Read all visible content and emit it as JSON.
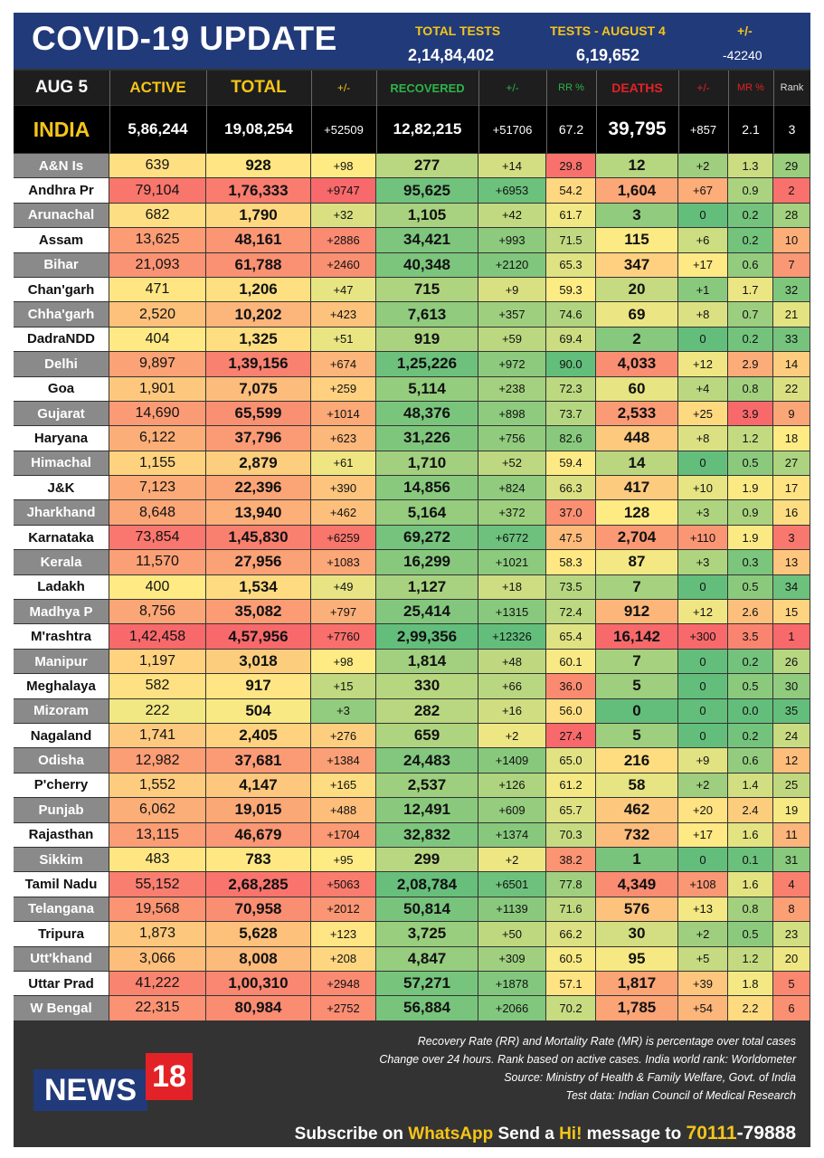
{
  "header": {
    "title": "COVID-19 UPDATE",
    "total_tests_label": "TOTAL TESTS",
    "total_tests_value": "2,14,84,402",
    "tests_day_label": "TESTS - AUGUST 4",
    "tests_day_value": "6,19,652",
    "change_label": "+/-",
    "change_value": "-42240"
  },
  "columns": {
    "date": "AUG 5",
    "active": "ACTIVE",
    "total": "TOTAL",
    "total_change": "+/-",
    "recovered": "RECOVERED",
    "recovered_change": "+/-",
    "rr": "RR %",
    "deaths": "DEATHS",
    "deaths_change": "+/-",
    "mr": "MR %",
    "rank": "Rank"
  },
  "india": {
    "name": "INDIA",
    "active": "5,86,244",
    "total": "19,08,254",
    "total_change": "+52509",
    "recovered": "12,82,215",
    "recovered_change": "+51706",
    "rr": "67.2",
    "deaths": "39,795",
    "deaths_change": "+857",
    "mr": "2.1",
    "rank": "3"
  },
  "states": [
    {
      "name": "A&N Is",
      "active": "639",
      "total": "928",
      "tc": "+98",
      "rec": "277",
      "rc": "+14",
      "rr": "29.8",
      "deaths": "12",
      "dc": "+2",
      "mr": "1.3",
      "rank": "29"
    },
    {
      "name": "Andhra Pr",
      "active": "79,104",
      "total": "1,76,333",
      "tc": "+9747",
      "rec": "95,625",
      "rc": "+6953",
      "rr": "54.2",
      "deaths": "1,604",
      "dc": "+67",
      "mr": "0.9",
      "rank": "2"
    },
    {
      "name": "Arunachal",
      "active": "682",
      "total": "1,790",
      "tc": "+32",
      "rec": "1,105",
      "rc": "+42",
      "rr": "61.7",
      "deaths": "3",
      "dc": "0",
      "mr": "0.2",
      "rank": "28"
    },
    {
      "name": "Assam",
      "active": "13,625",
      "total": "48,161",
      "tc": "+2886",
      "rec": "34,421",
      "rc": "+993",
      "rr": "71.5",
      "deaths": "115",
      "dc": "+6",
      "mr": "0.2",
      "rank": "10"
    },
    {
      "name": "Bihar",
      "active": "21,093",
      "total": "61,788",
      "tc": "+2460",
      "rec": "40,348",
      "rc": "+2120",
      "rr": "65.3",
      "deaths": "347",
      "dc": "+17",
      "mr": "0.6",
      "rank": "7"
    },
    {
      "name": "Chan'garh",
      "active": "471",
      "total": "1,206",
      "tc": "+47",
      "rec": "715",
      "rc": "+9",
      "rr": "59.3",
      "deaths": "20",
      "dc": "+1",
      "mr": "1.7",
      "rank": "32"
    },
    {
      "name": "Chha'garh",
      "active": "2,520",
      "total": "10,202",
      "tc": "+423",
      "rec": "7,613",
      "rc": "+357",
      "rr": "74.6",
      "deaths": "69",
      "dc": "+8",
      "mr": "0.7",
      "rank": "21"
    },
    {
      "name": "DadraNDD",
      "active": "404",
      "total": "1,325",
      "tc": "+51",
      "rec": "919",
      "rc": "+59",
      "rr": "69.4",
      "deaths": "2",
      "dc": "0",
      "mr": "0.2",
      "rank": "33"
    },
    {
      "name": "Delhi",
      "active": "9,897",
      "total": "1,39,156",
      "tc": "+674",
      "rec": "1,25,226",
      "rc": "+972",
      "rr": "90.0",
      "deaths": "4,033",
      "dc": "+12",
      "mr": "2.9",
      "rank": "14"
    },
    {
      "name": "Goa",
      "active": "1,901",
      "total": "7,075",
      "tc": "+259",
      "rec": "5,114",
      "rc": "+238",
      "rr": "72.3",
      "deaths": "60",
      "dc": "+4",
      "mr": "0.8",
      "rank": "22"
    },
    {
      "name": "Gujarat",
      "active": "14,690",
      "total": "65,599",
      "tc": "+1014",
      "rec": "48,376",
      "rc": "+898",
      "rr": "73.7",
      "deaths": "2,533",
      "dc": "+25",
      "mr": "3.9",
      "rank": "9"
    },
    {
      "name": "Haryana",
      "active": "6,122",
      "total": "37,796",
      "tc": "+623",
      "rec": "31,226",
      "rc": "+756",
      "rr": "82.6",
      "deaths": "448",
      "dc": "+8",
      "mr": "1.2",
      "rank": "18"
    },
    {
      "name": "Himachal",
      "active": "1,155",
      "total": "2,879",
      "tc": "+61",
      "rec": "1,710",
      "rc": "+52",
      "rr": "59.4",
      "deaths": "14",
      "dc": "0",
      "mr": "0.5",
      "rank": "27"
    },
    {
      "name": "J&K",
      "active": "7,123",
      "total": "22,396",
      "tc": "+390",
      "rec": "14,856",
      "rc": "+824",
      "rr": "66.3",
      "deaths": "417",
      "dc": "+10",
      "mr": "1.9",
      "rank": "17"
    },
    {
      "name": "Jharkhand",
      "active": "8,648",
      "total": "13,940",
      "tc": "+462",
      "rec": "5,164",
      "rc": "+372",
      "rr": "37.0",
      "deaths": "128",
      "dc": "+3",
      "mr": "0.9",
      "rank": "16"
    },
    {
      "name": "Karnataka",
      "active": "73,854",
      "total": "1,45,830",
      "tc": "+6259",
      "rec": "69,272",
      "rc": "+6772",
      "rr": "47.5",
      "deaths": "2,704",
      "dc": "+110",
      "mr": "1.9",
      "rank": "3"
    },
    {
      "name": "Kerala",
      "active": "11,570",
      "total": "27,956",
      "tc": "+1083",
      "rec": "16,299",
      "rc": "+1021",
      "rr": "58.3",
      "deaths": "87",
      "dc": "+3",
      "mr": "0.3",
      "rank": "13"
    },
    {
      "name": "Ladakh",
      "active": "400",
      "total": "1,534",
      "tc": "+49",
      "rec": "1,127",
      "rc": "+18",
      "rr": "73.5",
      "deaths": "7",
      "dc": "0",
      "mr": "0.5",
      "rank": "34"
    },
    {
      "name": "Madhya P",
      "active": "8,756",
      "total": "35,082",
      "tc": "+797",
      "rec": "25,414",
      "rc": "+1315",
      "rr": "72.4",
      "deaths": "912",
      "dc": "+12",
      "mr": "2.6",
      "rank": "15"
    },
    {
      "name": "M'rashtra",
      "active": "1,42,458",
      "total": "4,57,956",
      "tc": "+7760",
      "rec": "2,99,356",
      "rc": "+12326",
      "rr": "65.4",
      "deaths": "16,142",
      "dc": "+300",
      "mr": "3.5",
      "rank": "1"
    },
    {
      "name": "Manipur",
      "active": "1,197",
      "total": "3,018",
      "tc": "+98",
      "rec": "1,814",
      "rc": "+48",
      "rr": "60.1",
      "deaths": "7",
      "dc": "0",
      "mr": "0.2",
      "rank": "26"
    },
    {
      "name": "Meghalaya",
      "active": "582",
      "total": "917",
      "tc": "+15",
      "rec": "330",
      "rc": "+66",
      "rr": "36.0",
      "deaths": "5",
      "dc": "0",
      "mr": "0.5",
      "rank": "30"
    },
    {
      "name": "Mizoram",
      "active": "222",
      "total": "504",
      "tc": "+3",
      "rec": "282",
      "rc": "+16",
      "rr": "56.0",
      "deaths": "0",
      "dc": "0",
      "mr": "0.0",
      "rank": "35"
    },
    {
      "name": "Nagaland",
      "active": "1,741",
      "total": "2,405",
      "tc": "+276",
      "rec": "659",
      "rc": "+2",
      "rr": "27.4",
      "deaths": "5",
      "dc": "0",
      "mr": "0.2",
      "rank": "24"
    },
    {
      "name": "Odisha",
      "active": "12,982",
      "total": "37,681",
      "tc": "+1384",
      "rec": "24,483",
      "rc": "+1409",
      "rr": "65.0",
      "deaths": "216",
      "dc": "+9",
      "mr": "0.6",
      "rank": "12"
    },
    {
      "name": "P'cherry",
      "active": "1,552",
      "total": "4,147",
      "tc": "+165",
      "rec": "2,537",
      "rc": "+126",
      "rr": "61.2",
      "deaths": "58",
      "dc": "+2",
      "mr": "1.4",
      "rank": "25"
    },
    {
      "name": "Punjab",
      "active": "6,062",
      "total": "19,015",
      "tc": "+488",
      "rec": "12,491",
      "rc": "+609",
      "rr": "65.7",
      "deaths": "462",
      "dc": "+20",
      "mr": "2.4",
      "rank": "19"
    },
    {
      "name": "Rajasthan",
      "active": "13,115",
      "total": "46,679",
      "tc": "+1704",
      "rec": "32,832",
      "rc": "+1374",
      "rr": "70.3",
      "deaths": "732",
      "dc": "+17",
      "mr": "1.6",
      "rank": "11"
    },
    {
      "name": "Sikkim",
      "active": "483",
      "total": "783",
      "tc": "+95",
      "rec": "299",
      "rc": "+2",
      "rr": "38.2",
      "deaths": "1",
      "dc": "0",
      "mr": "0.1",
      "rank": "31"
    },
    {
      "name": "Tamil Nadu",
      "active": "55,152",
      "total": "2,68,285",
      "tc": "+5063",
      "rec": "2,08,784",
      "rc": "+6501",
      "rr": "77.8",
      "deaths": "4,349",
      "dc": "+108",
      "mr": "1.6",
      "rank": "4"
    },
    {
      "name": "Telangana",
      "active": "19,568",
      "total": "70,958",
      "tc": "+2012",
      "rec": "50,814",
      "rc": "+1139",
      "rr": "71.6",
      "deaths": "576",
      "dc": "+13",
      "mr": "0.8",
      "rank": "8"
    },
    {
      "name": "Tripura",
      "active": "1,873",
      "total": "5,628",
      "tc": "+123",
      "rec": "3,725",
      "rc": "+50",
      "rr": "66.2",
      "deaths": "30",
      "dc": "+2",
      "mr": "0.5",
      "rank": "23"
    },
    {
      "name": "Utt'khand",
      "active": "3,066",
      "total": "8,008",
      "tc": "+208",
      "rec": "4,847",
      "rc": "+309",
      "rr": "60.5",
      "deaths": "95",
      "dc": "+5",
      "mr": "1.2",
      "rank": "20"
    },
    {
      "name": "Uttar Prad",
      "active": "41,222",
      "total": "1,00,310",
      "tc": "+2948",
      "rec": "57,271",
      "rc": "+1878",
      "rr": "57.1",
      "deaths": "1,817",
      "dc": "+39",
      "mr": "1.8",
      "rank": "5"
    },
    {
      "name": "W Bengal",
      "active": "22,315",
      "total": "80,984",
      "tc": "+2752",
      "rec": "56,884",
      "rc": "+2066",
      "rr": "70.2",
      "deaths": "1,785",
      "dc": "+54",
      "mr": "2.2",
      "rank": "6"
    }
  ],
  "footer": {
    "note1": "Recovery Rate (RR) and Mortality Rate (MR) is percentage over total cases",
    "note2": "Change over 24 hours. Rank based on active cases. India world rank: Worldometer",
    "note3": "Source: Ministry of Health & Family Welfare, Govt. of India",
    "note4": "Test data: Indian Council of Medical Research",
    "logo_news": "NEWS",
    "logo_18": "18",
    "subscribe_1": "Subscribe on ",
    "subscribe_whatsapp": "WhatsApp",
    "subscribe_2": " Send a ",
    "subscribe_hi": "Hi!",
    "subscribe_3": " message to ",
    "subscribe_num_a": "70111",
    "subscribe_num_b": "-79888"
  },
  "colors": {
    "header_bg": "#213a7a",
    "accent_yellow": "#f5c518",
    "recovered_green": "#2db34a",
    "deaths_red": "#e32227",
    "state_stripe": "#8a8a8a"
  }
}
